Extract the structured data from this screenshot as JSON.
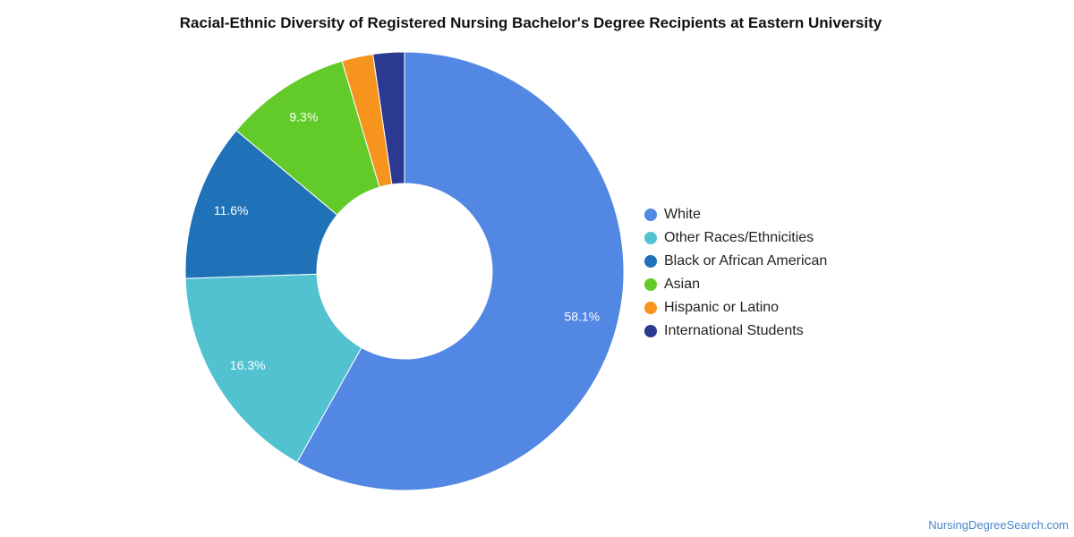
{
  "chart_data": {
    "type": "pie",
    "donut": true,
    "title": "Racial-Ethnic Diversity of Registered Nursing Bachelor's Degree Recipients at Eastern University",
    "legend_position": "right",
    "series": [
      {
        "name": "White",
        "value": 58.1,
        "label": "58.1%",
        "color": "#5387e4"
      },
      {
        "name": "Other Races/Ethnicities",
        "value": 16.3,
        "label": "16.3%",
        "color": "#52c1d0"
      },
      {
        "name": "Black or African American",
        "value": 11.6,
        "label": "11.6%",
        "color": "#1f71b8"
      },
      {
        "name": "Asian",
        "value": 9.3,
        "label": "9.3%",
        "color": "#62cb29"
      },
      {
        "name": "Hispanic or Latino",
        "value": 2.3,
        "label": "",
        "color": "#f7941d"
      },
      {
        "name": "International Students",
        "value": 2.3,
        "label": "",
        "color": "#2b3990"
      }
    ]
  },
  "source": "NursingDegreeSearch.com"
}
